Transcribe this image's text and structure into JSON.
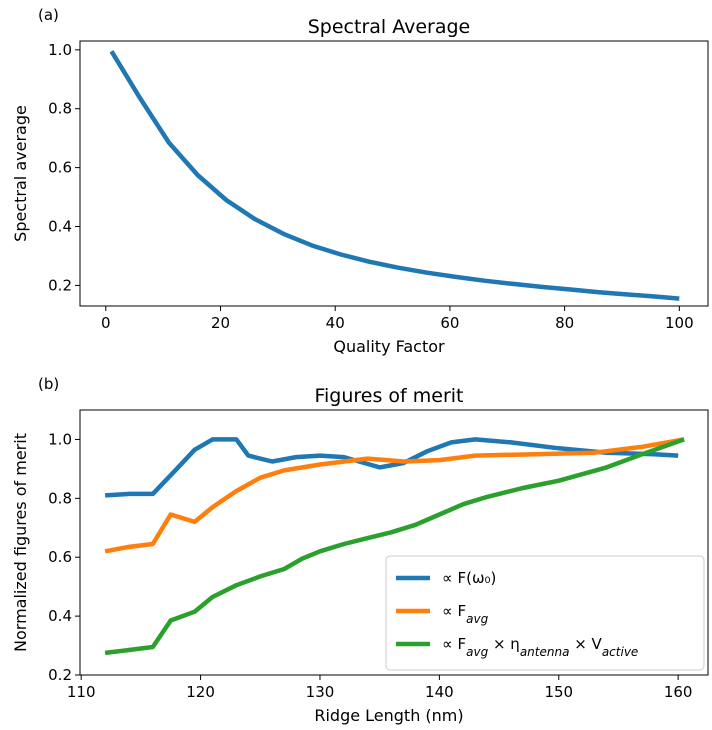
{
  "panels": [
    "(a)",
    "(b)"
  ],
  "chart_data": [
    {
      "type": "line",
      "title": "Spectral Average",
      "xlabel": "Quality Factor",
      "ylabel": "Spectral average",
      "xlim": [
        -4.5,
        105
      ],
      "ylim": [
        0.13,
        1.03
      ],
      "xticks": [
        0,
        20,
        40,
        60,
        80,
        100
      ],
      "yticks": [
        0.2,
        0.4,
        0.6,
        0.8,
        1.0
      ],
      "xtick_labels": [
        "0",
        "20",
        "40",
        "60",
        "80",
        "100"
      ],
      "ytick_labels": [
        "0.2",
        "0.4",
        "0.6",
        "0.8",
        "1.0"
      ],
      "grid": false,
      "series": [
        {
          "color": "#1f77b4",
          "x": [
            1,
            6,
            11,
            16,
            21,
            26,
            31,
            36,
            41,
            46,
            51,
            56,
            61,
            66,
            71,
            76,
            81,
            86,
            91,
            96,
            100
          ],
          "y": [
            0.995,
            0.835,
            0.685,
            0.575,
            0.49,
            0.425,
            0.375,
            0.335,
            0.305,
            0.28,
            0.26,
            0.243,
            0.229,
            0.216,
            0.205,
            0.195,
            0.186,
            0.177,
            0.169,
            0.162,
            0.155
          ]
        }
      ]
    },
    {
      "type": "line",
      "title": "Figures of merit",
      "xlabel": "Ridge Length (nm)",
      "ylabel": "Normalized figures of merit",
      "xlim": [
        109.9,
        162.5
      ],
      "ylim": [
        0.2,
        1.1
      ],
      "xticks": [
        110,
        120,
        130,
        140,
        150,
        160
      ],
      "yticks": [
        0.2,
        0.4,
        0.6,
        0.8,
        1.0
      ],
      "xtick_labels": [
        "110",
        "120",
        "130",
        "140",
        "150",
        "160"
      ],
      "ytick_labels": [
        "0.2",
        "0.4",
        "0.6",
        "0.8",
        "1.0"
      ],
      "grid": false,
      "legend_position": "lower-right",
      "series": [
        {
          "name": "∝ F(ω₀)",
          "color": "#1f77b4",
          "x": [
            112,
            114,
            116,
            118,
            119.5,
            121,
            123,
            124,
            126,
            128,
            130,
            132,
            135,
            137,
            139,
            141,
            143,
            146,
            150,
            154,
            158,
            160
          ],
          "y": [
            0.81,
            0.815,
            0.815,
            0.9,
            0.965,
            1.0,
            1.0,
            0.945,
            0.925,
            0.94,
            0.945,
            0.94,
            0.905,
            0.92,
            0.96,
            0.99,
            1.0,
            0.99,
            0.97,
            0.955,
            0.95,
            0.945
          ]
        },
        {
          "name": "∝ F_avg",
          "color": "#ff7f0e",
          "x": [
            112,
            114,
            116,
            117.5,
            119.5,
            121,
            123,
            125,
            127,
            130,
            134,
            137,
            140,
            143,
            148,
            153,
            157,
            160.5
          ],
          "y": [
            0.62,
            0.635,
            0.645,
            0.745,
            0.72,
            0.77,
            0.825,
            0.87,
            0.895,
            0.915,
            0.935,
            0.925,
            0.93,
            0.945,
            0.95,
            0.955,
            0.975,
            1.0
          ]
        },
        {
          "name": "∝ F_avg × η_antenna × V_active",
          "color": "#2ca02c",
          "x": [
            112,
            114,
            116,
            117.5,
            119.5,
            121,
            123,
            125,
            127,
            128.5,
            130,
            132,
            134,
            136,
            138,
            140,
            142,
            144,
            147,
            150,
            154,
            157,
            160.5
          ],
          "y": [
            0.275,
            0.285,
            0.295,
            0.385,
            0.415,
            0.465,
            0.505,
            0.535,
            0.56,
            0.595,
            0.62,
            0.645,
            0.665,
            0.685,
            0.71,
            0.745,
            0.78,
            0.805,
            0.835,
            0.86,
            0.905,
            0.95,
            1.0
          ]
        }
      ]
    }
  ]
}
